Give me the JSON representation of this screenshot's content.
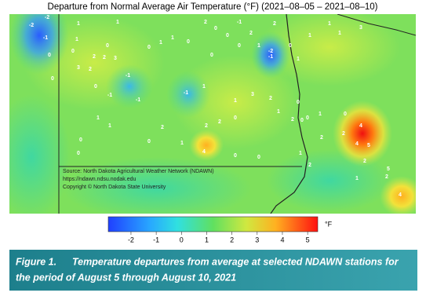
{
  "title": "Departure from Normal Average Air Temperature (°F) (2021–08–05 – 2021–08–10)",
  "stations": [
    -2,
    -2,
    -1,
    0,
    0,
    1,
    1,
    1,
    0,
    0,
    2,
    2,
    3,
    3,
    2,
    0,
    -1,
    -1,
    -1,
    1,
    0,
    1,
    1,
    0,
    2,
    0,
    0,
    -1,
    2,
    2,
    0,
    1,
    -2,
    -1,
    0,
    1,
    -1,
    1,
    1,
    3,
    2,
    0,
    1,
    2,
    0,
    0,
    1,
    0,
    2,
    2,
    2,
    0,
    0,
    0,
    1,
    1,
    4,
    0,
    0,
    1,
    2,
    2,
    0,
    4,
    4,
    5,
    2,
    2,
    5,
    2,
    1,
    4,
    3,
    1,
    1,
    1,
    0
  ],
  "attribution": [
    "Source: North Dakota Agricultural Weather Network (NDAWN)",
    "https://ndawn.ndsu.nodak.edu",
    "Copyright © North Dakota State University"
  ],
  "colorbar": {
    "lim": [
      -2.9,
      5.4
    ],
    "ticks": [
      -2,
      -1,
      0,
      1,
      2,
      3,
      4,
      5
    ],
    "unit": "°F"
  },
  "caption": {
    "label": "Figure 1.",
    "lines": [
      "Temperature departures from average at selected NDAWN stations for",
      "the period of August 5 through August 10, 2021"
    ]
  }
}
